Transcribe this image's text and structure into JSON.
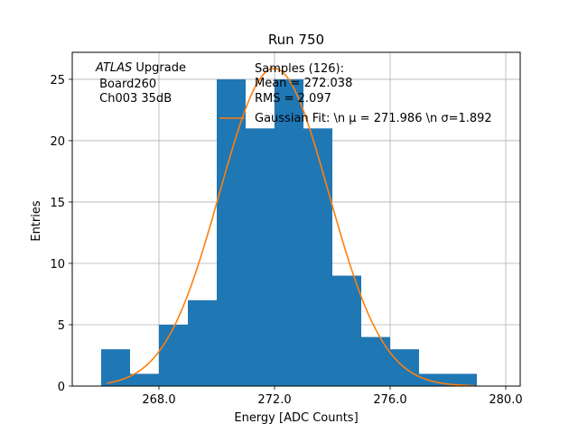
{
  "chart_data": {
    "type": "bar",
    "title": "Run 750",
    "xlabel": "Energy [ADC Counts]",
    "ylabel": "Entries",
    "xlim": [
      265.0,
      280.5
    ],
    "ylim": [
      0,
      27.2
    ],
    "xticks": [
      268.0,
      272.0,
      276.0,
      280.0
    ],
    "xtick_labels": [
      "268.0",
      "272.0",
      "276.0",
      "280.0"
    ],
    "yticks": [
      0,
      5,
      10,
      15,
      20,
      25
    ],
    "ytick_labels": [
      "0",
      "5",
      "10",
      "15",
      "20",
      "25"
    ],
    "grid": true,
    "histogram": {
      "bin_edges": [
        266,
        267,
        268,
        269,
        270,
        271,
        272,
        273,
        274,
        275,
        276,
        277,
        278,
        279
      ],
      "counts": [
        3,
        1,
        5,
        7,
        25,
        21,
        25,
        21,
        9,
        4,
        3,
        1,
        1
      ],
      "color": "#1f77b4"
    },
    "fit": {
      "mu": 271.986,
      "sigma": 1.892,
      "amplitude": 25.9,
      "x_range": [
        266.2,
        278.9
      ],
      "color": "#ff7f0e"
    },
    "annotation": {
      "label_italic": "ATLAS",
      "label_rest": " Upgrade",
      "line2": " Board260",
      "line3": " Ch003 35dB"
    },
    "legend": {
      "position": "top-right",
      "entries": [
        {
          "marker": "patch",
          "color": "#1f77b4",
          "lines": [
            "Samples (126):",
            " Mean = 272.038",
            " RMS = 2.097"
          ]
        },
        {
          "marker": "line",
          "color": "#ff7f0e",
          "lines": [
            "Gaussian Fit: \\n μ = 271.986 \\n σ=1.892"
          ]
        }
      ]
    }
  }
}
